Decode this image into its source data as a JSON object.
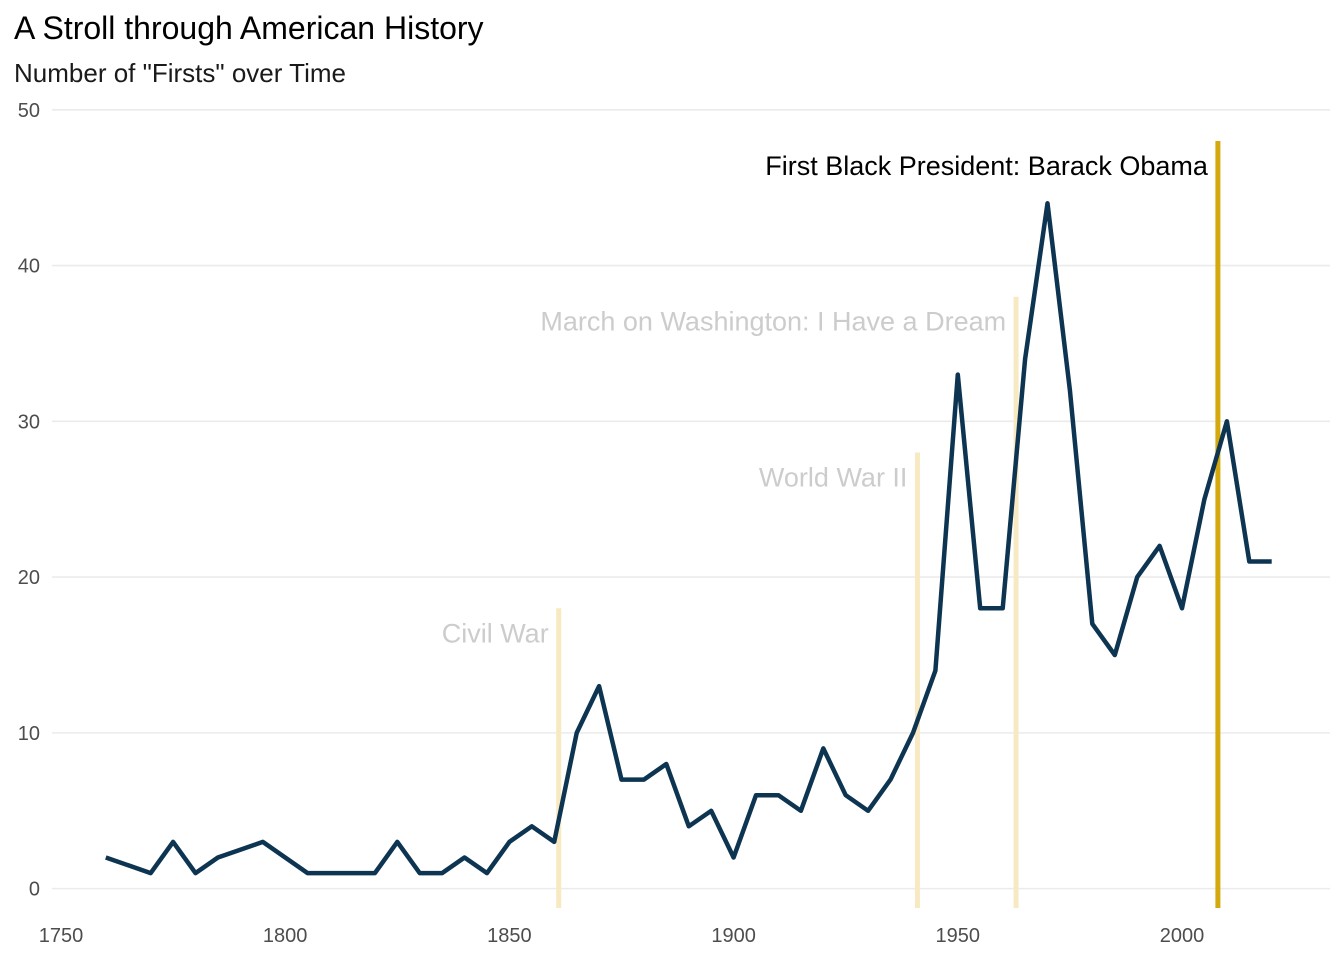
{
  "chart_data": {
    "type": "line",
    "title": "A Stroll through American History",
    "subtitle": "Number of \"Firsts\" over Time",
    "xlabel": "",
    "ylabel": "",
    "xlim": [
      1748,
      2033
    ],
    "ylim": [
      -1.5,
      50.5
    ],
    "x_ticks": [
      1750,
      1800,
      1850,
      1900,
      1950,
      2000
    ],
    "y_ticks": [
      0,
      10,
      20,
      30,
      40,
      50
    ],
    "grid": "horizontal major",
    "series": [
      {
        "x": [
          1760,
          1765,
          1770,
          1775,
          1780,
          1785,
          1790,
          1795,
          1800,
          1805,
          1810,
          1815,
          1820,
          1825,
          1830,
          1835,
          1840,
          1845,
          1850,
          1855,
          1860,
          1865,
          1870,
          1875,
          1880,
          1885,
          1890,
          1895,
          1900,
          1905,
          1910,
          1915,
          1920,
          1925,
          1930,
          1935,
          1940,
          1945,
          1950,
          1955,
          1960,
          1965,
          1970,
          1975,
          1980,
          1985,
          1990,
          1995,
          2000,
          2005,
          2010,
          2015,
          2020
        ],
        "values": [
          2,
          1.5,
          1,
          3,
          1,
          2,
          2.5,
          3,
          2,
          1,
          1,
          1,
          1,
          3,
          1,
          1,
          2,
          1,
          3,
          4,
          3,
          10,
          13,
          7,
          7,
          8,
          4,
          5,
          2,
          6,
          6,
          5,
          9,
          6,
          5,
          7,
          10,
          14,
          33,
          18,
          18,
          34,
          44,
          32,
          17,
          15,
          20,
          22,
          18,
          25,
          30,
          21,
          21
        ],
        "color": "#0d3552"
      }
    ],
    "annotations": [
      {
        "label": "Civil War",
        "x": 1861,
        "y_top": 18,
        "line_color": "#f7e9c1",
        "text_color": "#cccccc"
      },
      {
        "label": "World War II",
        "x": 1941,
        "y_top": 28,
        "line_color": "#f7e9c1",
        "text_color": "#cccccc"
      },
      {
        "label": "March on Washington: I Have a Dream",
        "x": 1963,
        "y_top": 38,
        "line_color": "#f7e9c1",
        "text_color": "#cccccc"
      },
      {
        "label": "First Black President: Barack Obama",
        "x": 2008,
        "y_top": 48,
        "line_color": "#d4a90e",
        "text_color": "#000000"
      }
    ]
  }
}
